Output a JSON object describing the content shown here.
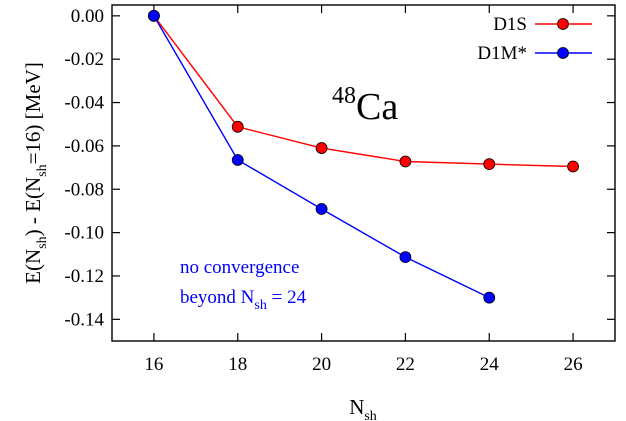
{
  "chart_data": {
    "type": "line",
    "x": [
      16,
      18,
      20,
      22,
      24,
      26
    ],
    "series": [
      {
        "name": "D1S",
        "color": "#ff0000",
        "x": [
          16,
          18,
          20,
          22,
          24,
          26
        ],
        "y": [
          0.0,
          -0.0512,
          -0.061,
          -0.0672,
          -0.0684,
          -0.0695
        ]
      },
      {
        "name": "D1M*",
        "color": "#0000ff",
        "x": [
          16,
          18,
          20,
          22,
          24
        ],
        "y": [
          0.0,
          -0.0665,
          -0.0891,
          -0.1113,
          -0.13
        ]
      }
    ],
    "xlim": [
      15,
      27
    ],
    "ylim": [
      -0.15,
      0.005
    ],
    "xticks": [
      "16",
      "18",
      "20",
      "22",
      "24",
      "26"
    ],
    "yticks": [
      "0.00",
      "-0.02",
      "-0.04",
      "-0.06",
      "-0.08",
      "-0.10",
      "-0.12",
      "-0.14"
    ],
    "xlabel": {
      "base": "N",
      "sub": "sh"
    },
    "ylabel": {
      "p1": "E(N",
      "s1": "sh",
      "p2": ") - E(N",
      "s2": "sh",
      "p3": "=16)  [MeV]"
    },
    "annotations": {
      "nucleus_mass": "48",
      "nucleus_symbol": "Ca",
      "note_line1": "no convergence",
      "note_line2_pre": "beyond N",
      "note_line2_sub": "sh",
      "note_line2_post": " = 24"
    },
    "legend_position": "top-right",
    "grid": false
  }
}
